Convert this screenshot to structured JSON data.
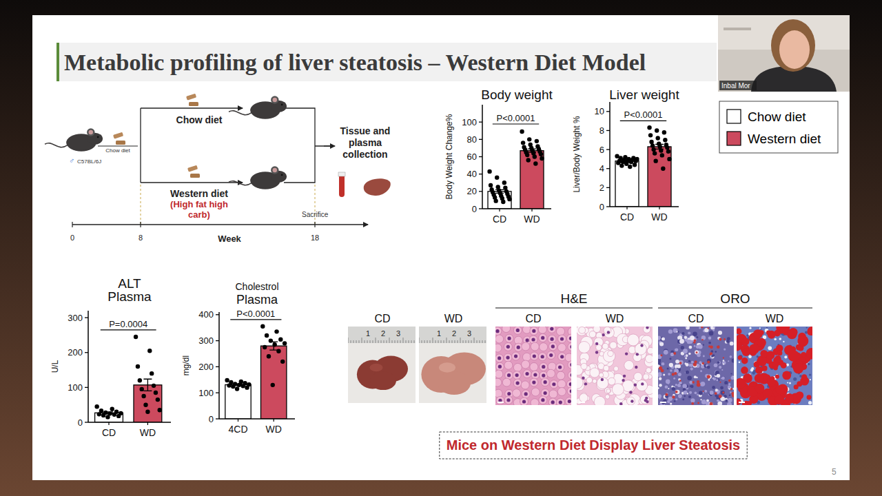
{
  "slide": {
    "title": "Metabolic profiling of liver steatosis – Western Diet Model",
    "conclusion": "Mice on Western Diet Display Liver Steatosis",
    "page_number": 5
  },
  "speaker": {
    "name": "Inbal Mor"
  },
  "legend": {
    "items": [
      {
        "name": "Chow diet",
        "color": "#ffffff"
      },
      {
        "name": "Western diet",
        "color": "#cc4a5e"
      }
    ]
  },
  "diagram": {
    "strain": "C57BL/6J",
    "sex_symbol": "♂",
    "start_diet": "Chow diet",
    "arm_top": "Chow diet",
    "arm_bottom": "Western diet",
    "arm_bottom_note": "(High fat high carb)",
    "endpoint": "Tissue and plasma collection",
    "event": "Sacrifice",
    "axis_label": "Week",
    "axis_ticks": [
      0,
      8,
      18
    ]
  },
  "images": {
    "photos": {
      "labels": [
        "CD",
        "WD"
      ],
      "ruler": [
        "1",
        "2",
        "3"
      ]
    },
    "panels": [
      {
        "title": "H&E",
        "labels": [
          "CD",
          "WD"
        ]
      },
      {
        "title": "ORO",
        "labels": [
          "CD",
          "WD"
        ]
      }
    ]
  },
  "chart_data": [
    {
      "type": "bar",
      "title": "Body weight",
      "ylabel": "Body Weight Change%",
      "categories": [
        "CD",
        "WD"
      ],
      "values": [
        20,
        67
      ],
      "errors": [
        2,
        2
      ],
      "colors": [
        "#ffffff",
        "#cc4a5e"
      ],
      "points": [
        [
          43,
          36,
          30,
          27,
          25,
          24,
          22,
          21,
          20,
          19,
          18,
          17,
          16,
          15,
          14,
          13,
          12,
          11,
          9,
          8
        ],
        [
          89,
          80,
          78,
          76,
          74,
          72,
          71,
          70,
          69,
          68,
          67,
          66,
          65,
          64,
          63,
          62,
          60,
          58,
          56,
          52
        ]
      ],
      "annotation": "P<0.0001",
      "ylim": [
        0,
        120
      ],
      "yticks": [
        0,
        20,
        40,
        60,
        80,
        100
      ]
    },
    {
      "type": "bar",
      "title": "Liver weight",
      "ylabel": "Liver/Body Weight %",
      "categories": [
        "CD",
        "WD"
      ],
      "values": [
        4.8,
        6.3
      ],
      "errors": [
        0.07,
        0.25
      ],
      "colors": [
        "#ffffff",
        "#cc4a5e"
      ],
      "points": [
        [
          5.3,
          5.2,
          5.1,
          5.1,
          5.0,
          5.0,
          4.9,
          4.9,
          4.8,
          4.8,
          4.8,
          4.7,
          4.7,
          4.6,
          4.5,
          4.4,
          4.3,
          4.2
        ],
        [
          8.3,
          8.0,
          7.8,
          7.5,
          7.2,
          7.0,
          6.8,
          6.6,
          6.5,
          6.4,
          6.3,
          6.2,
          6.0,
          5.9,
          5.8,
          5.6,
          5.4,
          5.0,
          4.8,
          4.0
        ]
      ],
      "annotation": "P<0.0001",
      "ylim": [
        0,
        11
      ],
      "yticks": [
        0,
        2,
        4,
        6,
        8,
        10
      ]
    },
    {
      "type": "bar",
      "title": "ALT",
      "subtitle": "Plasma",
      "ylabel": "U/L",
      "categories": [
        "CD",
        "WD"
      ],
      "values": [
        27,
        107
      ],
      "errors": [
        3,
        17
      ],
      "colors": [
        "#ffffff",
        "#cc4a5e"
      ],
      "points": [
        [
          45,
          38,
          33,
          30,
          28,
          26,
          25,
          23,
          22,
          20,
          18,
          15
        ],
        [
          245,
          205,
          160,
          140,
          120,
          105,
          95,
          85,
          75,
          65,
          50,
          35,
          30
        ]
      ],
      "annotation": "P=0.0004",
      "ylim": [
        0,
        320
      ],
      "yticks": [
        0,
        100,
        200,
        300
      ]
    },
    {
      "type": "bar",
      "title": "Cholestrol",
      "subtitle": "Plasma",
      "ylabel": "mg/dl",
      "categories": [
        "4CD",
        "WD"
      ],
      "values": [
        131,
        280
      ],
      "errors": [
        3,
        16
      ],
      "colors": [
        "#ffffff",
        "#cc4a5e"
      ],
      "points": [
        [
          148,
          143,
          140,
          137,
          134,
          132,
          130,
          128,
          126,
          124,
          120,
          115
        ],
        [
          355,
          335,
          320,
          305,
          300,
          290,
          285,
          275,
          260,
          240,
          220,
          130
        ]
      ],
      "annotation": "P<0.0001",
      "ylim": [
        0,
        410
      ],
      "yticks": [
        0,
        100,
        200,
        300,
        400
      ]
    }
  ]
}
